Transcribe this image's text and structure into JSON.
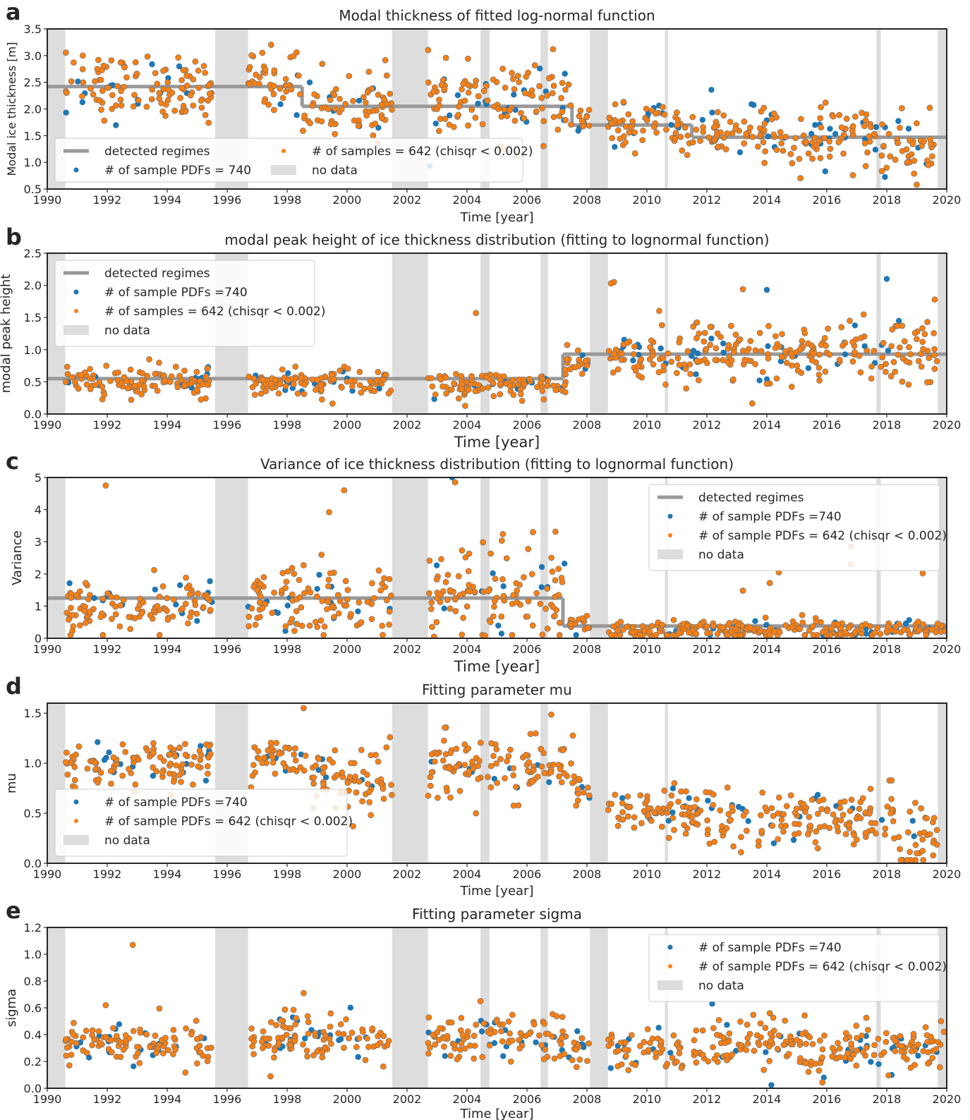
{
  "colors": {
    "sample_pdfs": "#1f77b4",
    "samples_fit": "#ff7f0e",
    "regimes": "#999999",
    "no_data": "#dddddd",
    "marker_edge": "#707070"
  },
  "time_axis": {
    "xlim": [
      1990,
      2020
    ],
    "ticks": [
      "1990",
      "1992",
      "1994",
      "1996",
      "1998",
      "2000",
      "2002",
      "2004",
      "2006",
      "2008",
      "2010",
      "2012",
      "2014",
      "2016",
      "2018",
      "2020"
    ]
  },
  "no_data_periods": [
    [
      1990.0,
      1990.6
    ],
    [
      1995.6,
      1996.7
    ],
    [
      2001.5,
      2002.7
    ],
    [
      2004.45,
      2004.75
    ],
    [
      2006.45,
      2006.7
    ],
    [
      2008.1,
      2008.7
    ],
    [
      2010.6,
      2010.7
    ],
    [
      2017.65,
      2017.8
    ],
    [
      2019.7,
      2020.0
    ]
  ],
  "chart_data": [
    {
      "type": "scatter",
      "panel_letter": "a",
      "title": "Modal thickness of fitted log-normal function",
      "xlabel": "Time [year]",
      "ylabel": "Modal ice thickness [m]",
      "ylim": [
        0.5,
        3.5
      ],
      "yticks": [
        "0.5",
        "1.0",
        "1.5",
        "2.0",
        "2.5",
        "3.0",
        "3.5"
      ],
      "legend": {
        "placement": "lower-left",
        "columns": 2,
        "entries": [
          "detected regimes",
          "# of samples = 642 (chisqr < 0.002)",
          "# of sample PDFs = 740",
          "no data"
        ]
      },
      "regimes": [
        {
          "x": [
            1990.0,
            1998.5
          ],
          "y": 2.42
        },
        {
          "x": [
            1998.5,
            2007.5
          ],
          "y": 2.05
        },
        {
          "x": [
            2007.5,
            2011.5
          ],
          "y": 1.7
        },
        {
          "x": [
            2011.5,
            2020.0
          ],
          "y": 1.47
        }
      ],
      "series": [
        {
          "legend_label": "# of sample PDFs = 740",
          "role": "all",
          "segments": [
            [
              1990.6,
              1995.5,
              2.42,
              0.3
            ],
            [
              1996.7,
              1998.5,
              2.55,
              0.3
            ],
            [
              1998.5,
              2001.5,
              2.05,
              0.3
            ],
            [
              2002.7,
              2007.6,
              2.15,
              0.35
            ],
            [
              2007.6,
              2008.1,
              1.75,
              0.15
            ],
            [
              2008.7,
              2011.5,
              1.65,
              0.2
            ],
            [
              2011.5,
              2017.65,
              1.5,
              0.28
            ],
            [
              2017.8,
              2019.7,
              1.3,
              0.3
            ]
          ],
          "outliers": [
            [
              1991.9,
              1.78
            ],
            [
              2013.9,
              2.02
            ],
            [
              2017.3,
              0.93
            ],
            [
              2019.0,
              0.58
            ]
          ]
        },
        {
          "legend_label": "# of samples = 642 (chisqr < 0.002)",
          "role": "fit",
          "fraction": 0.87
        }
      ]
    },
    {
      "type": "scatter",
      "panel_letter": "b",
      "title": "modal peak height of ice thickness distribution (fitting to lognormal function)",
      "xlabel": "Time [year]",
      "ylabel": "modal peak height",
      "ylim": [
        0.0,
        2.5
      ],
      "yticks": [
        "0.0",
        "0.5",
        "1.0",
        "1.5",
        "2.0",
        "2.5"
      ],
      "legend": {
        "placement": "upper-left",
        "columns": 1,
        "entries": [
          "detected regimes",
          "# of sample PDFs =740",
          "# of samples = 642 (chisqr < 0.002)",
          "no data"
        ]
      },
      "regimes": [
        {
          "x": [
            1990.0,
            2007.2
          ],
          "y": 0.55
        },
        {
          "x": [
            2007.2,
            2020.0
          ],
          "y": 0.93
        }
      ],
      "series": [
        {
          "legend_label": "# of sample PDFs =740",
          "role": "all",
          "segments": [
            [
              1990.6,
              1995.5,
              0.52,
              0.1
            ],
            [
              1996.7,
              2001.5,
              0.5,
              0.1
            ],
            [
              2002.7,
              2007.3,
              0.45,
              0.1
            ],
            [
              2007.3,
              2008.1,
              0.8,
              0.12
            ],
            [
              2008.7,
              2011.5,
              0.9,
              0.2
            ],
            [
              2011.5,
              2017.65,
              0.95,
              0.25
            ],
            [
              2017.8,
              2019.7,
              1.0,
              0.25
            ]
          ],
          "outliers": [
            [
              1991.9,
              0.3
            ],
            [
              1992.8,
              0.22
            ],
            [
              1993.4,
              0.85
            ],
            [
              2004.3,
              1.57
            ],
            [
              2008.9,
              2.05
            ],
            [
              2008.8,
              2.03
            ],
            [
              2010.5,
              1.38
            ],
            [
              2013.2,
              1.94
            ],
            [
              2014.0,
              1.93
            ],
            [
              2014.0,
              0.47
            ],
            [
              2018.0,
              2.1
            ],
            [
              2019.6,
              1.78
            ]
          ]
        },
        {
          "legend_label": "# of samples = 642 (chisqr < 0.002)",
          "role": "fit",
          "fraction": 0.87
        }
      ]
    },
    {
      "type": "scatter",
      "panel_letter": "c",
      "title": "Variance of ice thickness distribution (fitting to lognormal function)",
      "xlabel": "Time [year]",
      "ylabel": "Variance",
      "ylim": [
        0,
        5
      ],
      "yticks": [
        "0",
        "1",
        "2",
        "3",
        "4",
        "5"
      ],
      "legend": {
        "placement": "upper-right",
        "columns": 1,
        "entries": [
          "detected regimes",
          "# of sample PDFs =740",
          "# of sample PDFs = 642 (chisqr < 0.002)",
          "no data"
        ]
      },
      "regimes": [
        {
          "x": [
            1990.0,
            2007.2
          ],
          "y": 1.25
        },
        {
          "x": [
            2007.2,
            2020.0
          ],
          "y": 0.38
        }
      ],
      "series": [
        {
          "legend_label": "# of sample PDFs =740",
          "role": "all",
          "segments": [
            [
              1990.6,
              1995.5,
              0.9,
              0.45
            ],
            [
              1996.7,
              2001.5,
              1.1,
              0.6
            ],
            [
              2002.7,
              2007.3,
              1.3,
              0.8
            ],
            [
              2007.3,
              2008.1,
              0.45,
              0.12
            ],
            [
              2008.7,
              2020.0,
              0.25,
              0.15
            ]
          ],
          "outliers": [
            [
              1991.95,
              4.75
            ],
            [
              1999.9,
              4.6
            ],
            [
              1999.4,
              3.92
            ],
            [
              2003.6,
              4.85
            ],
            [
              2003.5,
              5.0
            ],
            [
              2006.2,
              3.3
            ],
            [
              2016.8,
              2.85
            ],
            [
              2016.8,
              2.3
            ],
            [
              2019.2,
              2.02
            ],
            [
              2014.4,
              2.05
            ],
            [
              2013.2,
              1.48
            ],
            [
              2014.1,
              1.72
            ],
            [
              2002.9,
              0.05
            ],
            [
              2004.6,
              0.08
            ]
          ]
        },
        {
          "legend_label": "# of sample PDFs = 642 (chisqr < 0.002)",
          "role": "fit",
          "fraction": 0.87
        }
      ]
    },
    {
      "type": "scatter",
      "panel_letter": "d",
      "title": "Fitting parameter mu",
      "xlabel": "Time [year]",
      "ylabel": "mu",
      "ylim": [
        0.0,
        1.6
      ],
      "yticks": [
        "0.0",
        "0.5",
        "1.0",
        "1.5"
      ],
      "legend": {
        "placement": "lower-left",
        "columns": 1,
        "entries": [
          "# of sample PDFs =740",
          "# of sample PDFs = 642 (chisqr < 0.002)",
          "no data"
        ]
      },
      "series": [
        {
          "legend_label": "# of sample PDFs =740",
          "role": "all",
          "segments": [
            [
              1990.6,
              1995.5,
              1.0,
              0.12
            ],
            [
              1996.7,
              1998.5,
              1.05,
              0.12
            ],
            [
              1998.5,
              2001.5,
              0.85,
              0.15
            ],
            [
              2002.7,
              2007.6,
              0.95,
              0.14
            ],
            [
              2007.6,
              2008.1,
              0.7,
              0.1
            ],
            [
              2008.7,
              2011.5,
              0.55,
              0.1
            ],
            [
              2011.5,
              2017.65,
              0.45,
              0.15
            ],
            [
              2017.8,
              2019.7,
              0.35,
              0.2
            ]
          ],
          "outliers": [
            [
              1998.55,
              1.55
            ],
            [
              2000.2,
              0.37
            ],
            [
              2004.3,
              0.5
            ],
            [
              2019.0,
              0.1
            ]
          ]
        },
        {
          "legend_label": "# of sample PDFs = 642 (chisqr < 0.002)",
          "role": "fit",
          "fraction": 0.87
        }
      ]
    },
    {
      "type": "scatter",
      "panel_letter": "e",
      "title": "Fitting parameter sigma",
      "xlabel": "Time [year]",
      "ylabel": "sigma",
      "ylim": [
        0.0,
        1.2
      ],
      "yticks": [
        "0.0",
        "0.2",
        "0.4",
        "0.6",
        "0.8",
        "1.0",
        "1.2"
      ],
      "legend": {
        "placement": "upper-right",
        "columns": 1,
        "entries": [
          "# of sample PDFs =740",
          "# of sample PDFs = 642 (chisqr < 0.002)",
          "no data"
        ]
      },
      "series": [
        {
          "legend_label": "# of sample PDFs =740",
          "role": "all",
          "segments": [
            [
              1990.6,
              1995.5,
              0.33,
              0.07
            ],
            [
              1996.7,
              2001.5,
              0.37,
              0.09
            ],
            [
              2002.7,
              2007.3,
              0.38,
              0.09
            ],
            [
              2007.3,
              2008.1,
              0.3,
              0.06
            ],
            [
              2008.7,
              2020.0,
              0.3,
              0.1
            ]
          ],
          "outliers": [
            [
              1992.85,
              1.07
            ],
            [
              1991.95,
              0.62
            ],
            [
              1998.55,
              0.71
            ],
            [
              2004.45,
              0.65
            ],
            [
              2015.9,
              0.08
            ],
            [
              2014.1,
              0.56
            ]
          ]
        },
        {
          "legend_label": "# of sample PDFs = 642 (chisqr < 0.002)",
          "role": "fit",
          "fraction": 0.87
        }
      ]
    }
  ]
}
